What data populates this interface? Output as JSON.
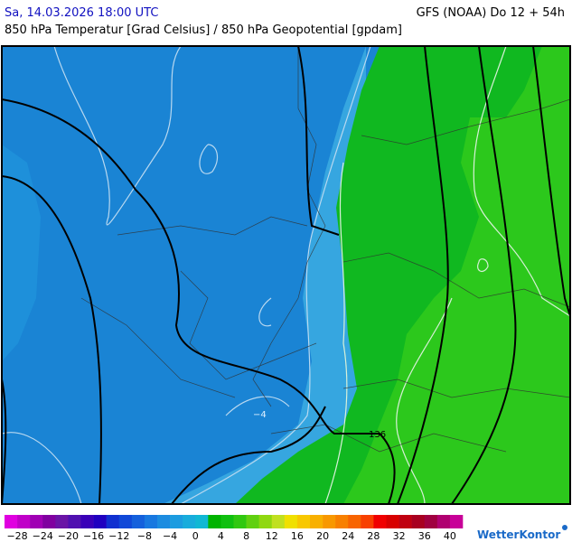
{
  "header": {
    "date": "Sa, 14.03.2026 18:00 UTC",
    "model": "GFS (NOAA) Do 12 + 54h",
    "subtitle": "850 hPa Temperatur [Grad Celsius] / 850 hPa Geopotential [gpdam]"
  },
  "map": {
    "contour_labels": [
      "−4",
      "136"
    ]
  },
  "colorbar": {
    "colors": [
      "#e000e0",
      "#c000c8",
      "#a000b4",
      "#8000a0",
      "#6a14a6",
      "#5010b0",
      "#3a00b8",
      "#2000c0",
      "#1030d0",
      "#1048d8",
      "#1460dc",
      "#1878e0",
      "#1c8ce0",
      "#1c9ce0",
      "#18acdc",
      "#10b8d4",
      "#00b400",
      "#10c010",
      "#30c810",
      "#60d010",
      "#90d810",
      "#c0e020",
      "#f0e000",
      "#f8c800",
      "#f8b000",
      "#f89800",
      "#f88000",
      "#f86400",
      "#f84000",
      "#f00000",
      "#d80000",
      "#c00010",
      "#a80020",
      "#a00040",
      "#b00070",
      "#c80098"
    ],
    "labels": [
      "−28",
      "−24",
      "−20",
      "−16",
      "−12",
      "−8",
      "−4",
      "0",
      "4",
      "8",
      "12",
      "16",
      "20",
      "24",
      "28",
      "32",
      "36",
      "40"
    ]
  },
  "logo": "WetterKontor"
}
